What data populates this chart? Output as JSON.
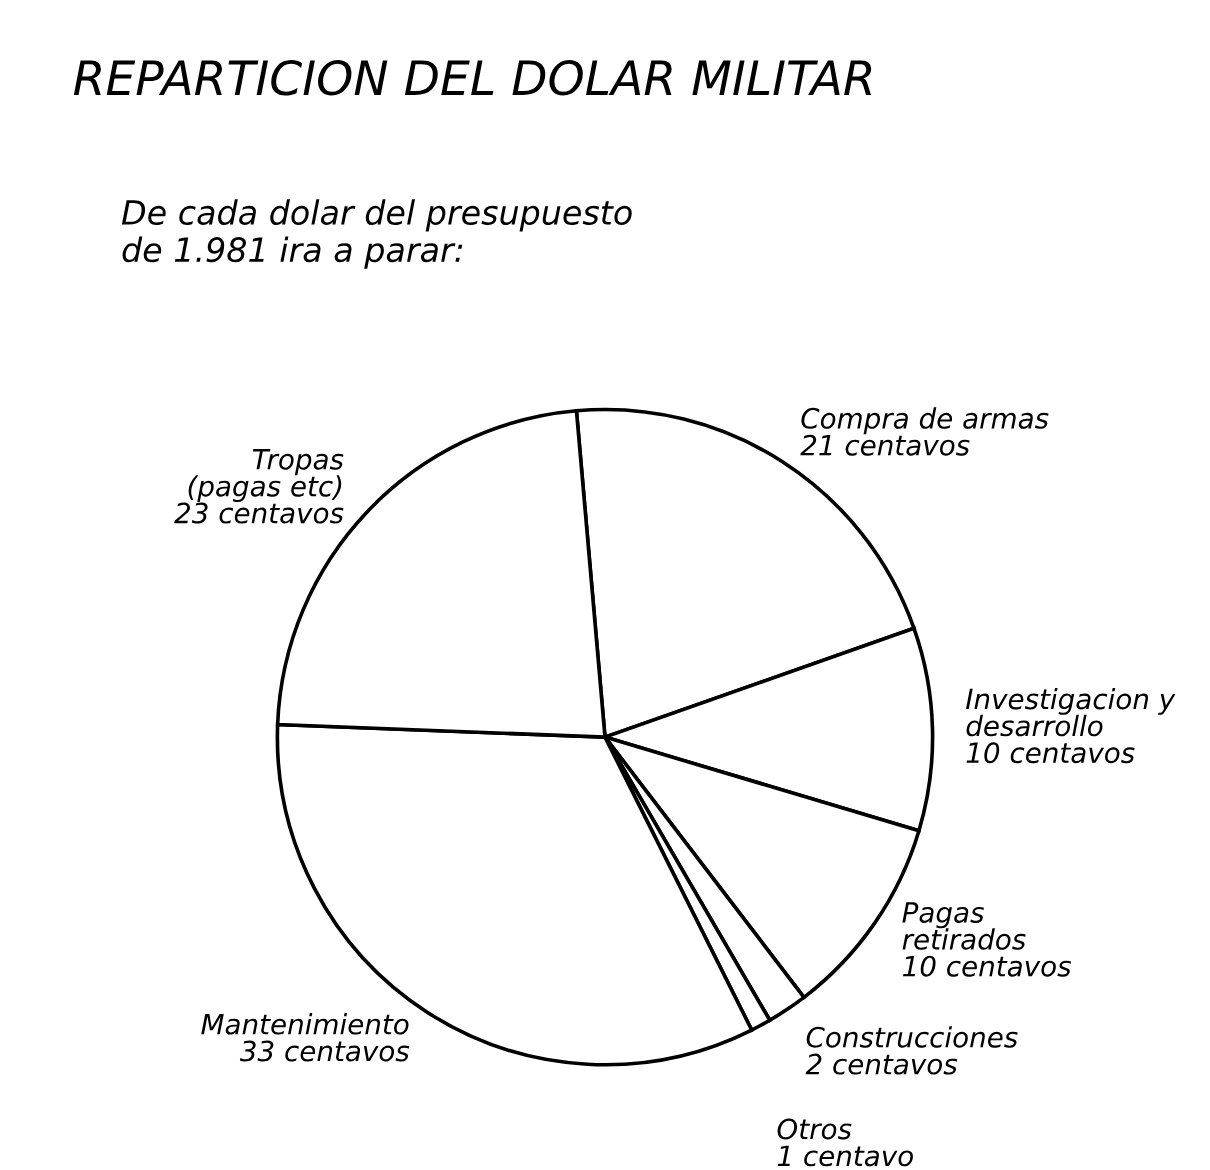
{
  "chart_data": {
    "type": "pie",
    "title": "REPARTICION DEL DOLAR MILITAR",
    "subtitle": "De cada dolar del presupuesto\nde 1.981 ira a parar:",
    "categories": [
      "Compra de armas\n21 centavos",
      "Investigacion y\ndesarrollo\n10 centavos",
      "Pagas\nretirados\n10 centavos",
      "Construcciones\n2 centavos",
      "Otros\n1 centavo",
      "Mantenimiento\n33 centavos",
      "Tropas\n(pagas etc)\n23 centavos"
    ],
    "values": [
      21,
      10,
      10,
      2,
      1,
      33,
      23
    ],
    "colors": [
      "#ffffff",
      "#ffffff",
      "#ffffff",
      "#ffffff",
      "#ffffff",
      "#ffffff",
      "#ffffff"
    ],
    "legend": false
  }
}
